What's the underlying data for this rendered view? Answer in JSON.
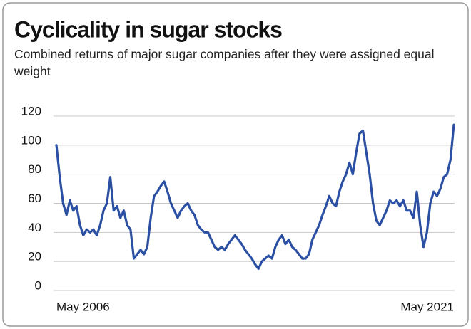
{
  "chart_data": {
    "type": "line",
    "title": "Cyclicality in sugar stocks",
    "subtitle": "Combined returns of major sugar companies after they were assigned equal weight",
    "categories": [
      "May 2006",
      null,
      null,
      null,
      null,
      null,
      null,
      null,
      null,
      null,
      null,
      null,
      null,
      null,
      null,
      null,
      null,
      null,
      null,
      null,
      null,
      null,
      null,
      null,
      null,
      null,
      null,
      null,
      null,
      null,
      null,
      null,
      null,
      null,
      null,
      null,
      null,
      null,
      null,
      null,
      null,
      null,
      null,
      null,
      null,
      null,
      null,
      null,
      null,
      null,
      null,
      null,
      null,
      null,
      null,
      null,
      null,
      null,
      null,
      null,
      null,
      null,
      null,
      null,
      null,
      null,
      null,
      null,
      null,
      null,
      null,
      null,
      null,
      null,
      null,
      null,
      null,
      null,
      null,
      null,
      null,
      null,
      null,
      null,
      null,
      null,
      null,
      null,
      null,
      null,
      null,
      null,
      null,
      null,
      null,
      null,
      null,
      null,
      null,
      null,
      null,
      null,
      null,
      null,
      null,
      null,
      null,
      null,
      null,
      null,
      null,
      null,
      null,
      null,
      null,
      null,
      null,
      null,
      "May 2021"
    ],
    "values": [
      100,
      78,
      60,
      52,
      62,
      55,
      58,
      45,
      38,
      42,
      40,
      42,
      38,
      45,
      55,
      60,
      78,
      55,
      58,
      50,
      55,
      45,
      42,
      22,
      25,
      28,
      25,
      30,
      50,
      65,
      68,
      72,
      75,
      68,
      60,
      55,
      50,
      55,
      58,
      60,
      55,
      52,
      45,
      42,
      40,
      40,
      35,
      30,
      28,
      30,
      28,
      32,
      35,
      38,
      35,
      32,
      28,
      25,
      22,
      18,
      15,
      20,
      22,
      24,
      22,
      30,
      35,
      38,
      32,
      35,
      30,
      28,
      25,
      22,
      22,
      25,
      35,
      40,
      45,
      52,
      58,
      65,
      60,
      58,
      68,
      75,
      80,
      88,
      80,
      95,
      108,
      110,
      95,
      80,
      60,
      48,
      45,
      50,
      55,
      62,
      60,
      62,
      58,
      62,
      55,
      55,
      50,
      68,
      45,
      30,
      40,
      60,
      68,
      65,
      70,
      78,
      80,
      90,
      114
    ],
    "color": "#2b50a3",
    "ylim": [
      0,
      120
    ],
    "yticks": [
      0,
      20,
      40,
      60,
      80,
      100,
      120
    ],
    "grid": true
  }
}
